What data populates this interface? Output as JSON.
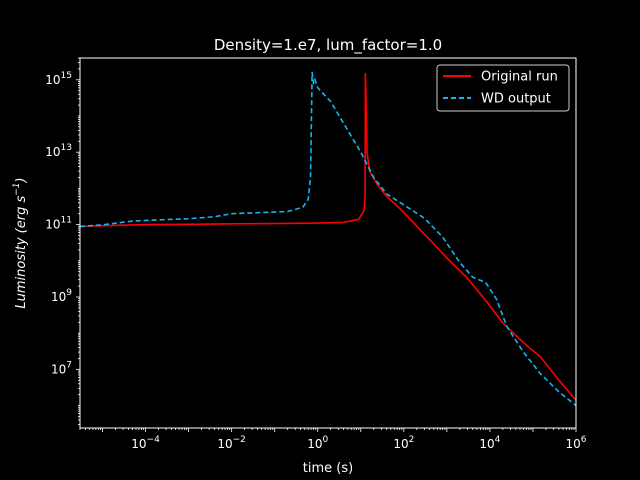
{
  "chart_data": {
    "type": "line",
    "title": "Density=1.e7, lum_factor=1.0",
    "xlabel": "time (s)",
    "ylabel_main": "Luminosity (erg s",
    "ylabel_sup": "−1",
    "ylabel_close": ")",
    "xscale": "log",
    "yscale": "log",
    "xlim": [
      3e-06,
      1000000.0
    ],
    "ylim": [
      240000.0,
      4000000000000000.0
    ],
    "grid": false,
    "legend_position": "top-right",
    "x_ticks": [
      {
        "base": "10",
        "exp": "−4",
        "value": 0.0001
      },
      {
        "base": "10",
        "exp": "−2",
        "value": 0.01
      },
      {
        "base": "10",
        "exp": "0",
        "value": 1
      },
      {
        "base": "10",
        "exp": "2",
        "value": 100
      },
      {
        "base": "10",
        "exp": "4",
        "value": 10000
      },
      {
        "base": "10",
        "exp": "6",
        "value": 1000000
      }
    ],
    "y_ticks": [
      {
        "base": "10",
        "exp": "7",
        "value": 10000000.0
      },
      {
        "base": "10",
        "exp": "9",
        "value": 1000000000.0
      },
      {
        "base": "10",
        "exp": "11",
        "value": 100000000000.0
      },
      {
        "base": "10",
        "exp": "13",
        "value": 10000000000000.0
      },
      {
        "base": "10",
        "exp": "15",
        "value": 1000000000000000.0
      }
    ],
    "series": [
      {
        "name": "Original run",
        "color": "#ff0000",
        "style": "solid",
        "points": [
          [
            3e-06,
            89000000000.0
          ],
          [
            1e-05,
            93000000000.0
          ],
          [
            0.0001,
            100000000000.0
          ],
          [
            0.001,
            102000000000.0
          ],
          [
            0.01,
            105000000000.0
          ],
          [
            0.1,
            107000000000.0
          ],
          [
            1,
            110000000000.0
          ],
          [
            4,
            115000000000.0
          ],
          [
            9,
            140000000000.0
          ],
          [
            12,
            250000000000.0
          ],
          [
            12.6,
            700000000000.0
          ],
          [
            12.8,
            1500000000000000.0
          ],
          [
            13.1,
            500000000000000.0
          ],
          [
            14,
            10000000000000.0
          ],
          [
            16,
            3000000000000.0
          ],
          [
            25,
            1200000000000.0
          ],
          [
            40,
            600000000000.0
          ],
          [
            70,
            330000000000.0
          ],
          [
            150,
            130000000000.0
          ],
          [
            400,
            38000000000.0
          ],
          [
            1000,
            12000000000.0
          ],
          [
            3000,
            3300000000.0
          ],
          [
            8000,
            800000000.0
          ],
          [
            20000,
            190000000.0
          ],
          [
            60000,
            55000000.0
          ],
          [
            150000,
            22000000.0
          ],
          [
            400000,
            5000000.0
          ],
          [
            1000000,
            1400000.0
          ]
        ]
      },
      {
        "name": "WD output",
        "color": "#13b5f2",
        "style": "dashed",
        "points": [
          [
            3e-06,
            89000000000.0
          ],
          [
            1e-05,
            98000000000.0
          ],
          [
            5e-05,
            125000000000.0
          ],
          [
            0.0002,
            135000000000.0
          ],
          [
            0.001,
            145000000000.0
          ],
          [
            0.004,
            165000000000.0
          ],
          [
            0.01,
            200000000000.0
          ],
          [
            0.05,
            215000000000.0
          ],
          [
            0.2,
            230000000000.0
          ],
          [
            0.45,
            300000000000.0
          ],
          [
            0.6,
            500000000000.0
          ],
          [
            0.68,
            2000000000000.0
          ],
          [
            0.72,
            150000000000000.0
          ],
          [
            0.74,
            1600000000000000.0
          ],
          [
            0.8,
            800000000000000.0
          ],
          [
            0.85,
            1050000000000000.0
          ],
          [
            1.0,
            600000000000000.0
          ],
          [
            2,
            250000000000000.0
          ],
          [
            5,
            40000000000000.0
          ],
          [
            10,
            10000000000000.0
          ],
          [
            20,
            2000000000000.0
          ],
          [
            40,
            700000000000.0
          ],
          [
            100,
            350000000000.0
          ],
          [
            300,
            150000000000.0
          ],
          [
            800,
            45000000000.0
          ],
          [
            2000,
            9000000000.0
          ],
          [
            4000,
            3500000000.0
          ],
          [
            8000,
            2500000000.0
          ],
          [
            14000,
            900000000.0
          ],
          [
            25000,
            150000000.0
          ],
          [
            60000,
            30000000.0
          ],
          [
            150000,
            7500000.0
          ],
          [
            400000,
            2400000.0
          ],
          [
            1000000,
            1000000.0
          ]
        ]
      }
    ]
  }
}
